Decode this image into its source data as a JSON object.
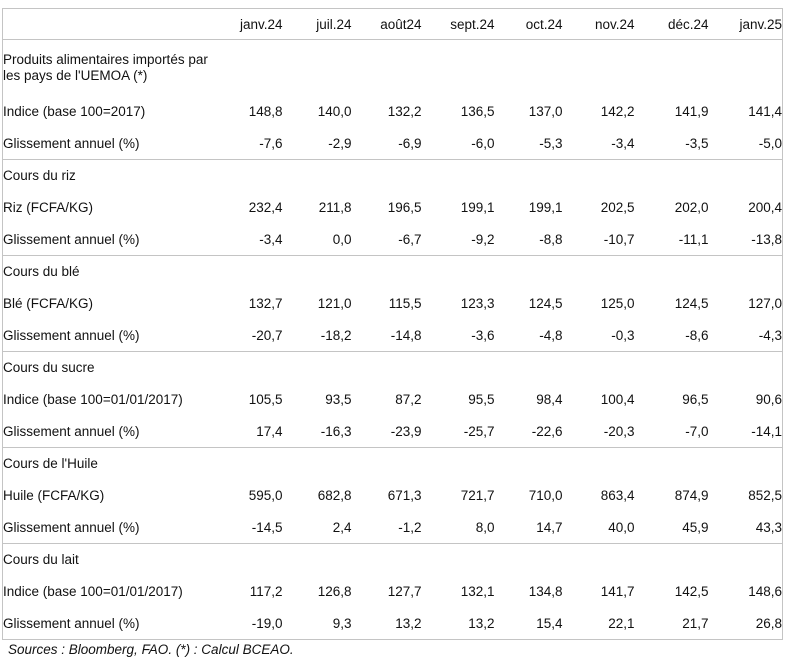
{
  "columns": [
    "janv.24",
    "juil.24",
    "août24",
    "sept.24",
    "oct.24",
    "nov.24",
    "déc.24",
    "janv.25"
  ],
  "sections": [
    {
      "title": "Produits alimentaires importés par les pays de l'UEMOA (*)",
      "rows": [
        {
          "label": "Indice (base 100=2017)",
          "values": [
            "148,8",
            "140,0",
            "132,2",
            "136,5",
            "137,0",
            "142,2",
            "141,9",
            "141,4"
          ]
        },
        {
          "label": "Glissement annuel (%)",
          "values": [
            "-7,6",
            "-2,9",
            "-6,9",
            "-6,0",
            "-5,3",
            "-3,4",
            "-3,5",
            "-5,0"
          ]
        }
      ]
    },
    {
      "title": "Cours du riz",
      "rows": [
        {
          "label": "Riz  (FCFA/KG)",
          "values": [
            "232,4",
            "211,8",
            "196,5",
            "199,1",
            "199,1",
            "202,5",
            "202,0",
            "200,4"
          ]
        },
        {
          "label": "Glissement annuel (%)",
          "values": [
            "-3,4",
            "0,0",
            "-6,7",
            "-9,2",
            "-8,8",
            "-10,7",
            "-11,1",
            "-13,8"
          ]
        }
      ]
    },
    {
      "title": "Cours du blé",
      "rows": [
        {
          "label": "Blé (FCFA/KG)",
          "values": [
            "132,7",
            "121,0",
            "115,5",
            "123,3",
            "124,5",
            "125,0",
            "124,5",
            "127,0"
          ]
        },
        {
          "label": "Glissement annuel (%)",
          "values": [
            "-20,7",
            "-18,2",
            "-14,8",
            "-3,6",
            "-4,8",
            "-0,3",
            "-8,6",
            "-4,3"
          ]
        }
      ]
    },
    {
      "title": "Cours du sucre",
      "rows": [
        {
          "label": "Indice (base 100=01/01/2017)",
          "values": [
            "105,5",
            "93,5",
            "87,2",
            "95,5",
            "98,4",
            "100,4",
            "96,5",
            "90,6"
          ]
        },
        {
          "label": "Glissement annuel (%)",
          "values": [
            "17,4",
            "-16,3",
            "-23,9",
            "-25,7",
            "-22,6",
            "-20,3",
            "-7,0",
            "-14,1"
          ]
        }
      ]
    },
    {
      "title": "Cours de l'Huile",
      "rows": [
        {
          "label": "Huile (FCFA/KG)",
          "values": [
            "595,0",
            "682,8",
            "671,3",
            "721,7",
            "710,0",
            "863,4",
            "874,9",
            "852,5"
          ]
        },
        {
          "label": "Glissement annuel (%)",
          "values": [
            "-14,5",
            "2,4",
            "-1,2",
            "8,0",
            "14,7",
            "40,0",
            "45,9",
            "43,3"
          ]
        }
      ]
    },
    {
      "title": "Cours du lait",
      "rows": [
        {
          "label": "Indice (base 100=01/01/2017)",
          "values": [
            "117,2",
            "126,8",
            "127,7",
            "132,1",
            "134,8",
            "141,7",
            "142,5",
            "148,6"
          ]
        },
        {
          "label": "Glissement annuel (%)",
          "values": [
            "-19,0",
            "9,3",
            "13,2",
            "13,2",
            "15,4",
            "22,1",
            "21,7",
            "26,8"
          ]
        }
      ]
    }
  ],
  "source": "Sources : Bloomberg, FAO. (*) : Calcul BCEAO."
}
